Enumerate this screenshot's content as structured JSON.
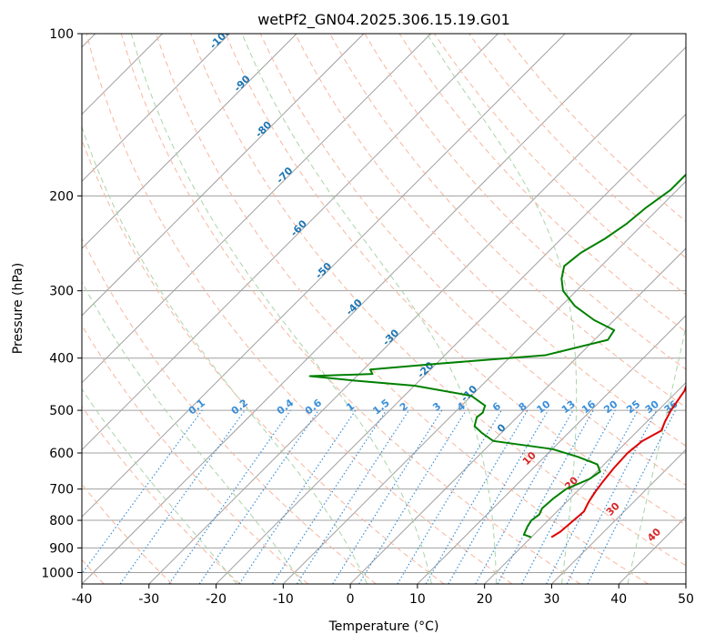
{
  "chart_data": {
    "type": "line",
    "title": "wetPf2_GN04.2025.306.15.19.G01",
    "xlabel": "Temperature (°C)",
    "ylabel": "Pressure (hPa)",
    "xlim": [
      -40,
      50
    ],
    "ylim": [
      1050,
      100
    ],
    "x_ticks": [
      -40,
      -30,
      -20,
      -10,
      0,
      10,
      20,
      30,
      40,
      50
    ],
    "y_ticks": [
      100,
      200,
      300,
      400,
      500,
      600,
      700,
      800,
      900,
      1000
    ],
    "skew": 1,
    "colors": {
      "temperature": "#e00000",
      "dewpoint": "#008000",
      "isotherm": "#a0a0a0",
      "dry_adiabat": "#f7b69e",
      "moist_adiabat": "#aad4aa",
      "mixing_ratio": "#3a8fd8",
      "dry_label": "#d62728",
      "moist_label": "#1f77b4"
    },
    "series": [
      {
        "name": "Temperature",
        "points": [
          [
            23.0,
            860
          ],
          [
            23.5,
            840
          ],
          [
            23.8,
            800
          ],
          [
            24.0,
            770
          ],
          [
            23.3,
            740
          ],
          [
            22.8,
            710
          ],
          [
            22.4,
            680
          ],
          [
            22.0,
            640
          ],
          [
            21.8,
            600
          ],
          [
            22.2,
            570
          ],
          [
            23.5,
            545
          ],
          [
            22.7,
            525
          ],
          [
            21.9,
            500
          ],
          [
            21.0,
            460
          ],
          [
            19.5,
            430
          ],
          [
            17.5,
            400
          ],
          [
            15.0,
            375
          ],
          [
            13.0,
            355
          ],
          [
            11.5,
            335
          ],
          [
            10.5,
            310
          ],
          [
            10.2,
            295
          ],
          [
            9.8,
            285
          ],
          [
            8.5,
            270
          ],
          [
            6.0,
            250
          ],
          [
            2.5,
            225
          ],
          [
            -0.5,
            200
          ],
          [
            -3.0,
            180
          ],
          [
            -5.0,
            165
          ],
          [
            -6.5,
            152
          ],
          [
            -7.5,
            140
          ],
          [
            -7.8,
            128
          ],
          [
            -7.5,
            118
          ],
          [
            -7.0,
            110
          ],
          [
            -6.9,
            100
          ]
        ],
        "color": "#e00000"
      },
      {
        "name": "Dewpoint",
        "points": [
          [
            20.0,
            860
          ],
          [
            18.5,
            850
          ],
          [
            17.8,
            820
          ],
          [
            17.5,
            800
          ],
          [
            17.8,
            780
          ],
          [
            17.3,
            760
          ],
          [
            17.5,
            730
          ],
          [
            18.0,
            700
          ],
          [
            20.0,
            670
          ],
          [
            20.5,
            650
          ],
          [
            19.0,
            630
          ],
          [
            15.0,
            610
          ],
          [
            10.0,
            590
          ],
          [
            0.0,
            570
          ],
          [
            -3.0,
            550
          ],
          [
            -5.0,
            535
          ],
          [
            -5.5,
            525
          ],
          [
            -6.0,
            515
          ],
          [
            -5.8,
            505
          ],
          [
            -6.5,
            490
          ],
          [
            -10.0,
            470
          ],
          [
            -20.0,
            450
          ],
          [
            -30.0,
            440
          ],
          [
            -37.0,
            432
          ],
          [
            -28.0,
            428
          ],
          [
            -29.0,
            420
          ],
          [
            -20.0,
            410
          ],
          [
            -5.0,
            395
          ],
          [
            2.0,
            370
          ],
          [
            1.5,
            355
          ],
          [
            -3.0,
            340
          ],
          [
            -8.0,
            320
          ],
          [
            -12.0,
            300
          ],
          [
            -14.0,
            285
          ],
          [
            -15.5,
            270
          ],
          [
            -15.0,
            255
          ],
          [
            -13.5,
            240
          ],
          [
            -12.5,
            225
          ],
          [
            -12.0,
            210
          ],
          [
            -11.0,
            195
          ],
          [
            -11.0,
            180
          ],
          [
            -10.5,
            170
          ],
          [
            -10.5,
            160
          ],
          [
            -10.0,
            150
          ],
          [
            -9.5,
            140
          ],
          [
            -8.5,
            130
          ],
          [
            -8.0,
            120
          ],
          [
            -7.5,
            115
          ],
          [
            -6.5,
            110
          ],
          [
            -5.0,
            105
          ],
          [
            -4.2,
            100
          ]
        ],
        "color": "#008000"
      }
    ],
    "dry_adiabats_C": [
      -100,
      -90,
      -80,
      -70,
      -60,
      -50,
      -40,
      -30,
      -20,
      -10,
      0,
      10,
      20,
      30,
      40,
      50,
      60,
      70,
      80,
      90,
      100,
      110,
      120,
      130,
      140
    ],
    "moist_adiabats_C": [
      -20,
      -10,
      0,
      10,
      20,
      30,
      40
    ],
    "mixing_ratio_lines_gkg": [
      0.1,
      0.2,
      0.4,
      0.6,
      1,
      1.5,
      2,
      3,
      4,
      6,
      8,
      10,
      13,
      16,
      20,
      25,
      30,
      36
    ],
    "annotations": {
      "moist_labels": [
        "-100",
        "-90",
        "-80",
        "-70",
        "-60",
        "-50",
        "-40",
        "-30",
        "-20",
        "-10",
        "0"
      ],
      "mixing_ratio_labels": [
        "0.1",
        "0.2",
        "0.4",
        "0.6",
        "1",
        "1.5",
        "2",
        "3",
        "4",
        "6",
        "8",
        "10",
        "13",
        "16",
        "20",
        "25",
        "30",
        "36"
      ],
      "dry_labels": [
        "10",
        "20",
        "30",
        "40"
      ]
    }
  }
}
